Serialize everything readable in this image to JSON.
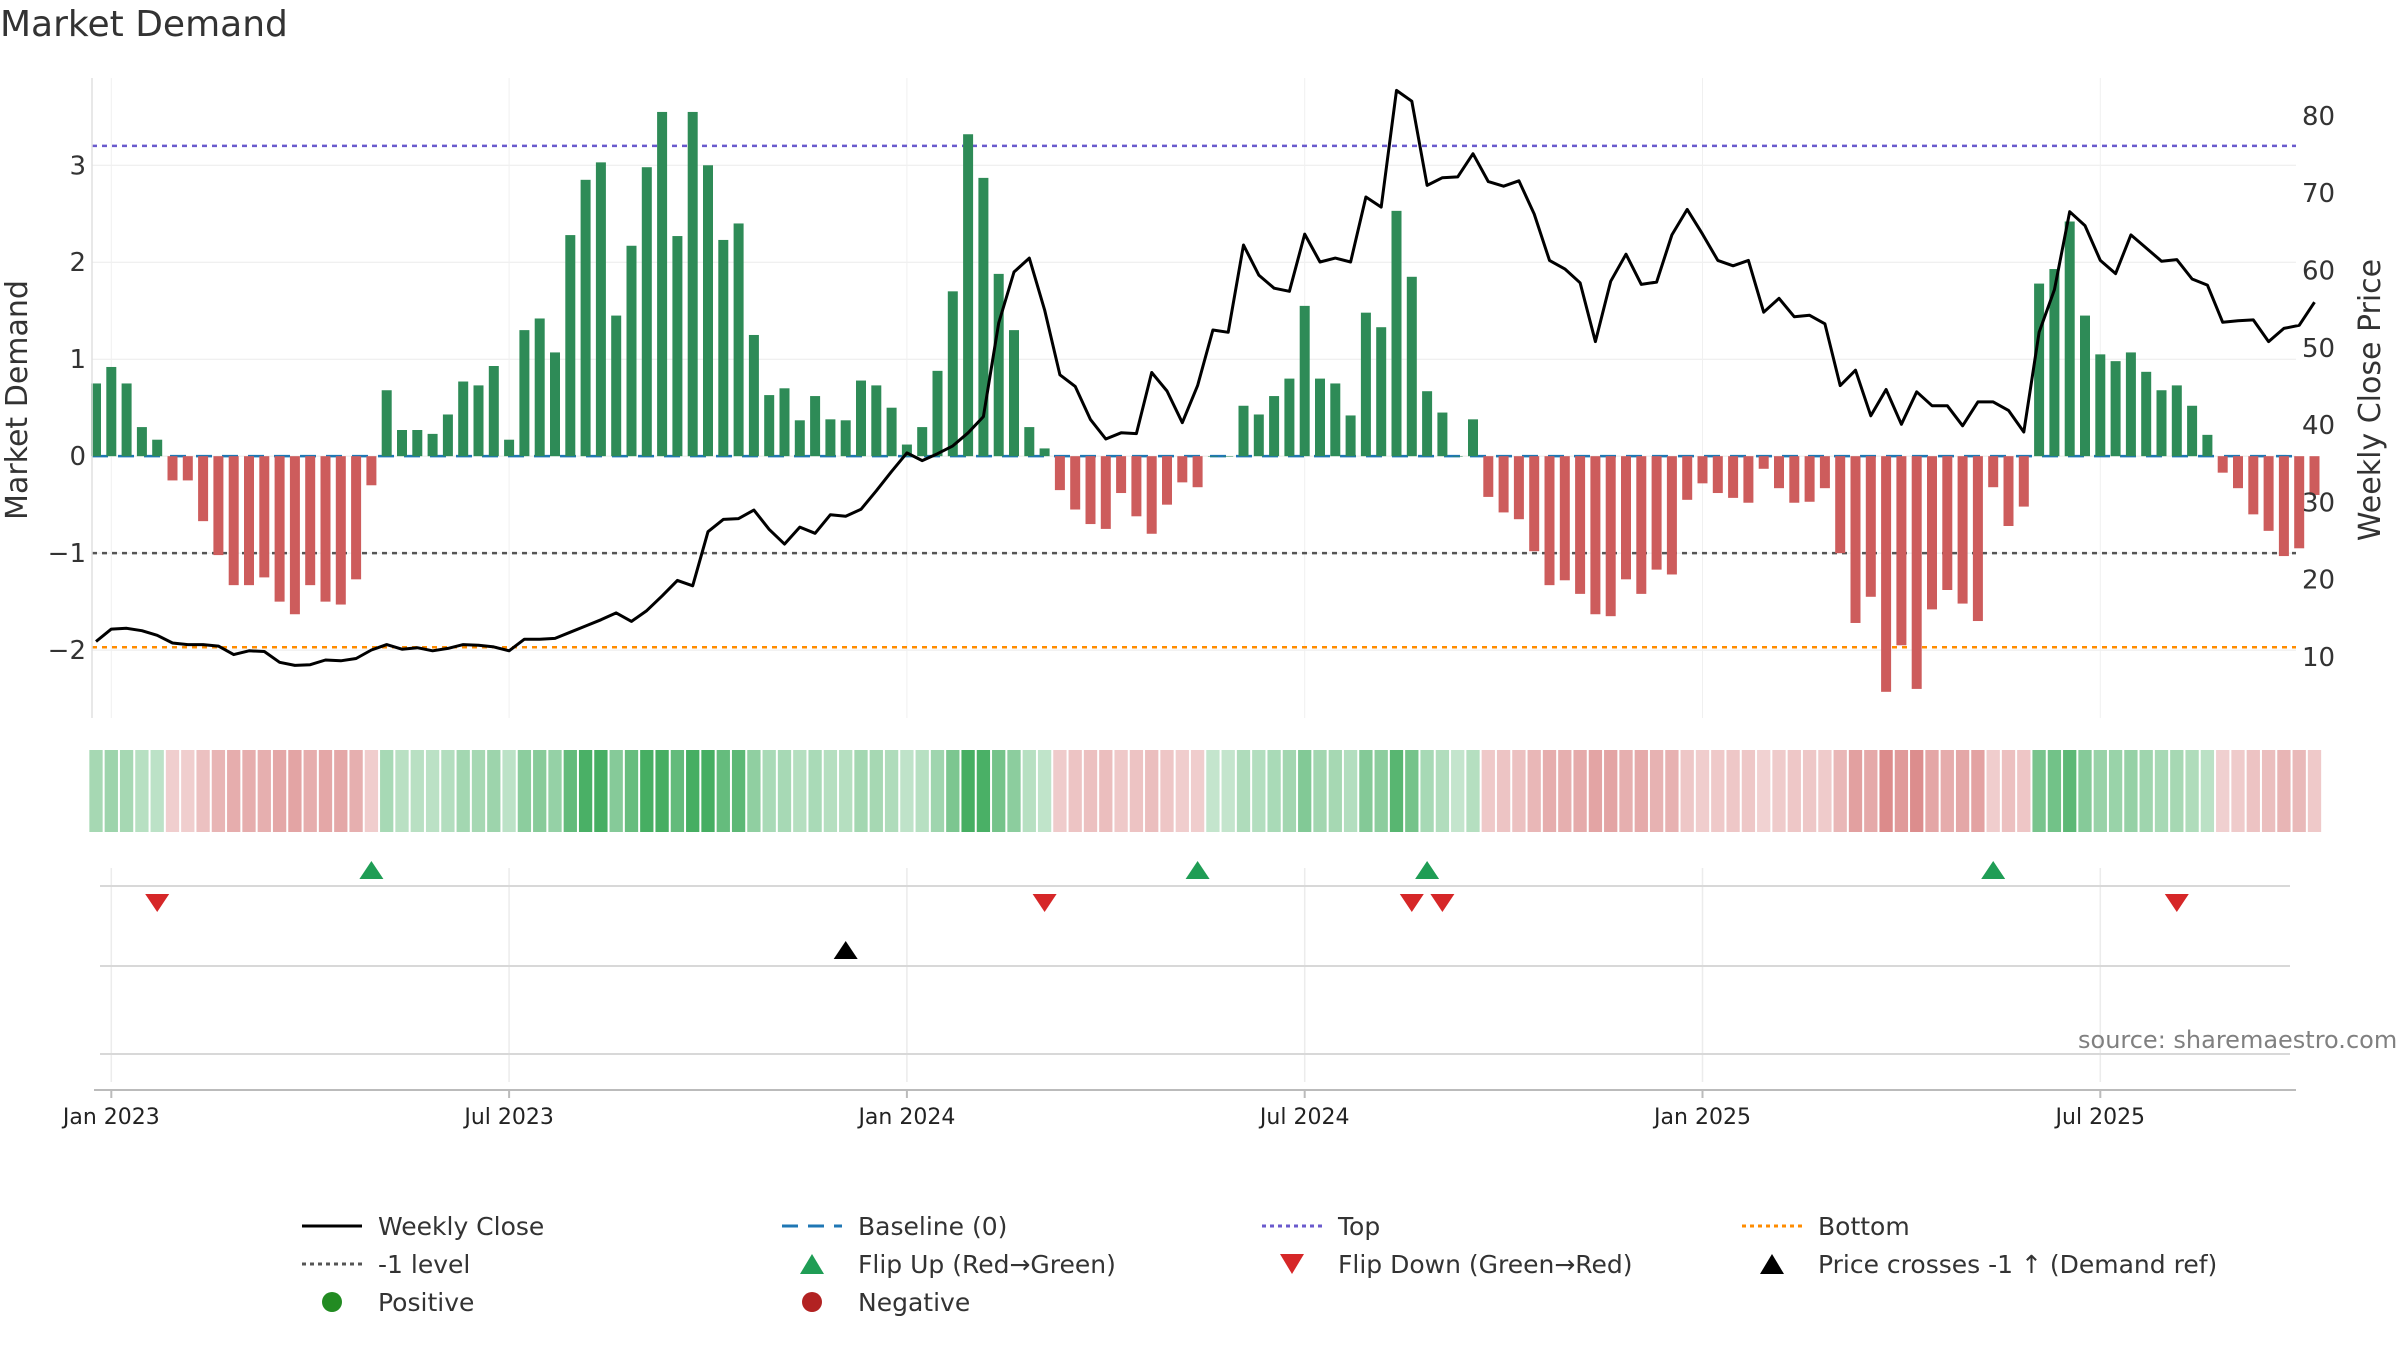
{
  "source_label": "source: sharemaestro.com",
  "colors": {
    "positive": "#2e8b57",
    "negative": "#cd5c5c",
    "price": "#000000",
    "baseline": "#1f77b4",
    "top": "#6a5acd",
    "minus1": "#555555",
    "bottom": "#ff8c00",
    "flip_up": "#1f9d55",
    "flip_down": "#d62728"
  },
  "chart_data": {
    "type": "bar",
    "title": "Market Demand",
    "ylabel": "Market Demand",
    "y2label": "Weekly Close Price",
    "ylim": [
      -2.7,
      3.9
    ],
    "y_ticks": [
      -2,
      -1,
      0,
      1,
      2,
      3
    ],
    "y_tick_labels": [
      "−2",
      "−1",
      "0",
      "1",
      "2",
      "3"
    ],
    "y2lim": [
      2.1,
      84.9
    ],
    "y2_ticks": [
      10,
      20,
      30,
      40,
      50,
      60,
      70,
      80
    ],
    "y2_tick_labels": [
      "10",
      "20",
      "30",
      "40",
      "50",
      "60",
      "70",
      "80"
    ],
    "x_ticks": [
      {
        "label": "Jan 2023",
        "week": 1
      },
      {
        "label": "Jul 2023",
        "week": 27
      },
      {
        "label": "Jan 2024",
        "week": 53
      },
      {
        "label": "Jul 2024",
        "week": 79
      },
      {
        "label": "Jan 2025",
        "week": 105
      },
      {
        "label": "Jul 2025",
        "week": 131
      }
    ],
    "reference_lines": {
      "top": 3.2,
      "minus1": -1.0,
      "bottom": -1.97,
      "baseline": 0
    },
    "demand": [
      0.75,
      0.92,
      0.75,
      0.3,
      0.17,
      -0.25,
      -0.25,
      -0.67,
      -1.02,
      -1.33,
      -1.33,
      -1.25,
      -1.5,
      -1.63,
      -1.33,
      -1.5,
      -1.53,
      -1.27,
      -0.3,
      0.68,
      0.27,
      0.27,
      0.23,
      0.43,
      0.77,
      0.73,
      0.93,
      0.17,
      1.3,
      1.42,
      1.07,
      2.28,
      2.85,
      3.03,
      1.45,
      2.17,
      2.98,
      3.55,
      2.27,
      3.55,
      3.0,
      2.23,
      2.4,
      1.25,
      0.63,
      0.7,
      0.37,
      0.62,
      0.38,
      0.37,
      0.78,
      0.73,
      0.5,
      0.12,
      0.3,
      0.88,
      1.7,
      3.32,
      2.87,
      1.88,
      1.3,
      0.3,
      0.08,
      -0.35,
      -0.55,
      -0.7,
      -0.75,
      -0.38,
      -0.62,
      -0.8,
      -0.5,
      -0.27,
      -0.32,
      0.0,
      0.0,
      0.52,
      0.43,
      0.62,
      0.8,
      1.55,
      0.8,
      0.75,
      0.42,
      1.48,
      1.33,
      2.53,
      1.85,
      0.67,
      0.45,
      0.0,
      0.38,
      -0.42,
      -0.58,
      -0.65,
      -0.98,
      -1.33,
      -1.28,
      -1.42,
      -1.63,
      -1.65,
      -1.27,
      -1.42,
      -1.17,
      -1.22,
      -0.45,
      -0.28,
      -0.38,
      -0.43,
      -0.48,
      -0.13,
      -0.33,
      -0.48,
      -0.47,
      -0.33,
      -1.0,
      -1.72,
      -1.45,
      -2.43,
      -1.95,
      -2.4,
      -1.58,
      -1.38,
      -1.52,
      -1.7,
      -0.32,
      -0.72,
      -0.52,
      1.78,
      1.93,
      2.42,
      1.45,
      1.05,
      0.98,
      1.07,
      0.87,
      0.68,
      0.73,
      0.52,
      0.22,
      -0.17,
      -0.33,
      -0.6,
      -0.77,
      -1.03,
      -0.95,
      -0.4
    ],
    "weekly_close": [
      12,
      13.6,
      13.7,
      13.4,
      12.8,
      11.8,
      11.6,
      11.6,
      11.4,
      10.3,
      10.8,
      10.7,
      9.3,
      8.9,
      9,
      9.6,
      9.5,
      9.8,
      10.9,
      11.6,
      11,
      11.2,
      10.8,
      11.1,
      11.6,
      11.5,
      11.3,
      10.8,
      12.3,
      12.3,
      12.4,
      13.2,
      14,
      14.8,
      15.7,
      14.6,
      16,
      17.9,
      19.9,
      19.2,
      26.2,
      27.8,
      27.9,
      29,
      26.5,
      24.6,
      26.8,
      26,
      28.4,
      28.2,
      29.1,
      31.5,
      34,
      36.4,
      35.4,
      36.3,
      37.3,
      39,
      41.1,
      53.2,
      59.8,
      61.6,
      54.9,
      46.5,
      45,
      40.7,
      38.2,
      39,
      38.9,
      46.8,
      44.4,
      40.3,
      45.1,
      52.3,
      52,
      63.3,
      59.4,
      57.7,
      57.3,
      64.7,
      61.1,
      61.6,
      61.1,
      69.5,
      68.2,
      83.3,
      81.9,
      71,
      72,
      72.1,
      75.1,
      71.5,
      70.9,
      71.6,
      67.3,
      61.3,
      60.2,
      58.4,
      50.8,
      58.6,
      62.1,
      58.2,
      58.5,
      64.6,
      67.9,
      64.7,
      61.3,
      60.6,
      61.3,
      54.6,
      56.4,
      54,
      54.2,
      53.1,
      45.1,
      47.1,
      41.2,
      44.6,
      40.1,
      44.3,
      42.5,
      42.5,
      39.9,
      43,
      43,
      41.9,
      39.1,
      52,
      57.5,
      67.6,
      65.8,
      61.3,
      59.6,
      64.6,
      62.9,
      61.2,
      61.4,
      58.9,
      58.1,
      53.3,
      53.5,
      53.6,
      50.8,
      52.5,
      52.9,
      55.9
    ],
    "flip_up_weeks": [
      18,
      72,
      87,
      124
    ],
    "flip_down_weeks": [
      4,
      62,
      86,
      88,
      136
    ],
    "price_cross_weeks": [
      49
    ],
    "legend": [
      {
        "label": "Weekly Close",
        "kind": "line-solid",
        "color": "#000000"
      },
      {
        "label": "Baseline (0)",
        "kind": "line-dashed",
        "color": "#1f77b4"
      },
      {
        "label": "Top",
        "kind": "line-dotted",
        "color": "#6a5acd"
      },
      {
        "label": "Bottom",
        "kind": "line-dotted",
        "color": "#ff8c00"
      },
      {
        "label": "-1 level",
        "kind": "line-dotted",
        "color": "#555555"
      },
      {
        "label": "Flip Up (Red→Green)",
        "kind": "tri-up",
        "color": "#1f9d55"
      },
      {
        "label": "Flip Down (Green→Red)",
        "kind": "tri-down",
        "color": "#d62728"
      },
      {
        "label": "Price crosses -1 ↑ (Demand ref)",
        "kind": "tri-up",
        "color": "#000000"
      },
      {
        "label": "Positive",
        "kind": "dot",
        "color": "#2e8b57"
      },
      {
        "label": "Negative",
        "kind": "dot",
        "color": "#b22222"
      }
    ]
  }
}
